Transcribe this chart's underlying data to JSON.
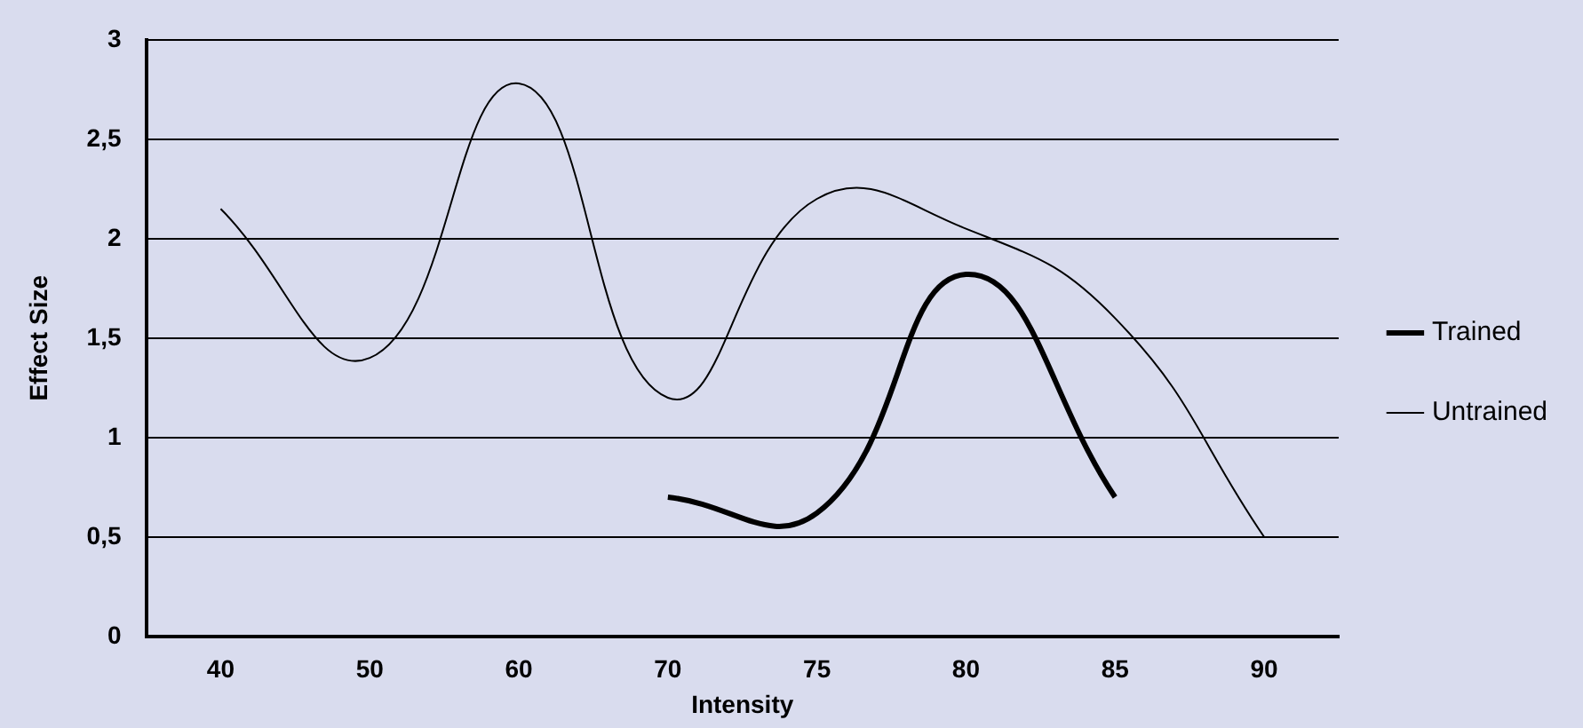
{
  "chart_data": {
    "type": "line",
    "xlabel": "Intensity",
    "ylabel": "Effect Size",
    "categories": [
      "40",
      "50",
      "60",
      "70",
      "75",
      "80",
      "85",
      "90"
    ],
    "series": [
      {
        "name": "Trained",
        "color": "#000000",
        "values": [
          null,
          null,
          null,
          0.7,
          0.62,
          1.82,
          0.7,
          null
        ]
      },
      {
        "name": "Untrained",
        "color": "#000000",
        "values": [
          2.15,
          1.4,
          2.78,
          1.2,
          2.2,
          2.05,
          1.6,
          0.5
        ]
      }
    ],
    "ylim": [
      0,
      3
    ],
    "yticks": [
      0,
      {
        "value": 0.5,
        "label": "0,5"
      },
      1,
      {
        "value": 1.5,
        "label": "1,5"
      },
      2,
      {
        "value": 2.5,
        "label": "2,5"
      },
      3
    ],
    "grid": "y",
    "legend": "right",
    "marker": "none"
  }
}
